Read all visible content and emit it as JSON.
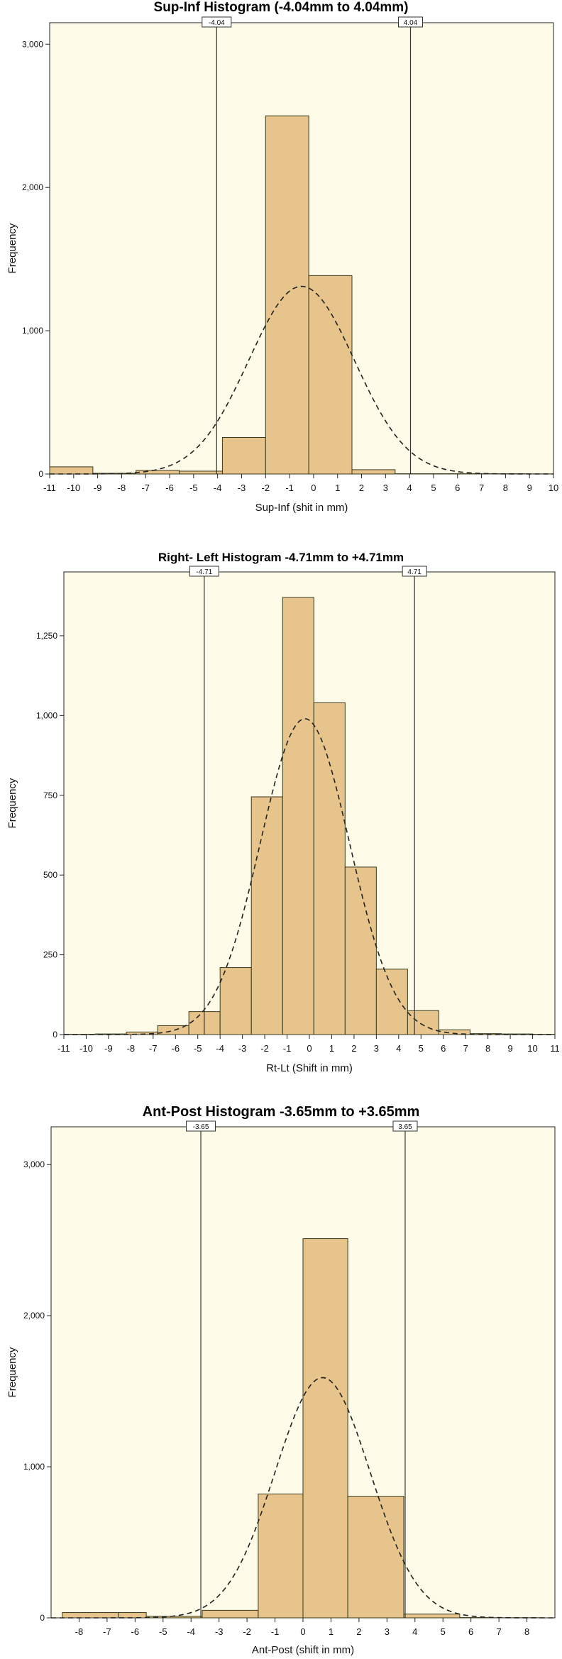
{
  "chart_data": [
    {
      "type": "bar",
      "title": "Sup-Inf Histogram (-4.04mm  to 4.04mm)",
      "xlabel": "Sup-Inf (shit in mm)",
      "ylabel": "Frequency",
      "xlim": [
        -11,
        10
      ],
      "ylim": [
        0,
        3150
      ],
      "xticks": [
        "-11",
        "-10",
        "-9",
        "-8",
        "-7",
        "-6",
        "-5",
        "-4",
        "-3",
        "-2",
        "-1",
        "0",
        "1",
        "2",
        "3",
        "4",
        "5",
        "6",
        "7",
        "8",
        "9",
        "10"
      ],
      "yticks": [
        "0",
        "1,000",
        "2,000",
        "3,000"
      ],
      "bin_edges": [
        -11,
        -9.2,
        -7.4,
        -5.6,
        -3.8,
        -2,
        -0.2,
        1.6,
        3.4,
        5.2,
        7,
        8.8,
        10
      ],
      "values": [
        50,
        5,
        25,
        20,
        255,
        2500,
        1385,
        30,
        2,
        2,
        2,
        1
      ],
      "ref_lines": [
        {
          "x": -4.04,
          "label": "-4.04"
        },
        {
          "x": 4.04,
          "label": "4.04"
        }
      ],
      "normal_curve": {
        "mean": -0.5,
        "sd": 2.2,
        "peak": 1310
      },
      "bar_color": "#e6c48b",
      "plot_bg": "#fefbe9",
      "grid": false
    },
    {
      "type": "bar",
      "title": "Right- Left Histogram -4.71mm to +4.71mm",
      "xlabel": "Rt-Lt (Shift in mm)",
      "ylabel": "Frequency",
      "xlim": [
        -11,
        11
      ],
      "ylim": [
        0,
        1450
      ],
      "xticks": [
        "-11",
        "-10",
        "-9",
        "-8",
        "-7",
        "-6",
        "-5",
        "-4",
        "-3",
        "-2",
        "-1",
        "0",
        "1",
        "2",
        "3",
        "4",
        "5",
        "6",
        "7",
        "8",
        "9",
        "10",
        "11"
      ],
      "yticks": [
        "0",
        "250",
        "500",
        "750",
        "1,000",
        "1,250"
      ],
      "bin_edges": [
        -11,
        -9.6,
        -8.2,
        -6.8,
        -5.4,
        -4,
        -2.6,
        -1.2,
        0.2,
        1.6,
        3,
        4.4,
        5.8,
        7.2,
        8.6,
        10,
        11
      ],
      "values": [
        1,
        2,
        8,
        28,
        72,
        210,
        745,
        1370,
        1040,
        525,
        205,
        75,
        15,
        3,
        2,
        1
      ],
      "ref_lines": [
        {
          "x": -4.71,
          "label": "-4.71"
        },
        {
          "x": 4.71,
          "label": "4.71"
        }
      ],
      "normal_curve": {
        "mean": -0.2,
        "sd": 2.0,
        "peak": 990
      },
      "bar_color": "#e6c48b",
      "plot_bg": "#fefbe9",
      "grid": false
    },
    {
      "type": "bar",
      "title": "Ant-Post Histogram -3.65mm to +3.65mm",
      "xlabel": "Ant-Post (shift in mm)",
      "ylabel": "Frequency",
      "xlim": [
        -9,
        9
      ],
      "ylim": [
        0,
        3250
      ],
      "xticks": [
        "-8",
        "-7",
        "-6",
        "-5",
        "-4",
        "-3",
        "-2",
        "-1",
        "0",
        "1",
        "2",
        "3",
        "4",
        "5",
        "6",
        "7",
        "8"
      ],
      "yticks": [
        "0",
        "1,000",
        "2,000",
        "3,000"
      ],
      "bin_edges": [
        -8.6,
        -6.6,
        -5.6,
        -3.6,
        -1.6,
        0,
        1.6,
        3.6,
        5.6,
        6.6,
        8.6
      ],
      "values": [
        35,
        35,
        10,
        50,
        820,
        2510,
        805,
        25,
        2,
        1
      ],
      "ref_lines": [
        {
          "x": -3.65,
          "label": "-3.65"
        },
        {
          "x": 3.65,
          "label": "3.65"
        }
      ],
      "normal_curve": {
        "mean": 0.7,
        "sd": 1.7,
        "peak": 1590
      },
      "bar_color": "#e6c48b",
      "plot_bg": "#fefbe9",
      "grid": false
    }
  ]
}
